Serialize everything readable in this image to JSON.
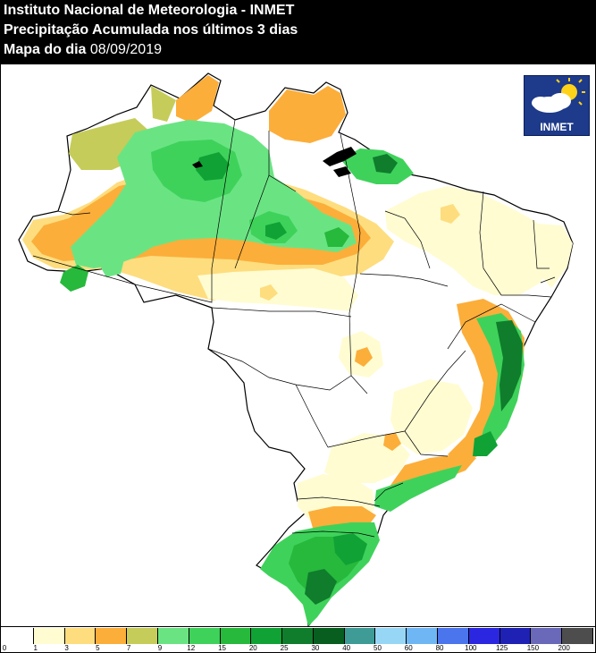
{
  "header": {
    "institution": "Instituto Nacional de Meteorologia - INMET",
    "product": "Precipitação Acumulada nos últimos 3 dias",
    "date_label": "Mapa do dia",
    "date_value": "08/09/2019"
  },
  "logo": {
    "text": "INMET",
    "icon": "sun-cloud-icon"
  },
  "legend": {
    "ticks": [
      "0",
      "1",
      "3",
      "5",
      "7",
      "9",
      "12",
      "15",
      "20",
      "25",
      "30",
      "40",
      "50",
      "60",
      "80",
      "100",
      "125",
      "150",
      "200"
    ],
    "colors": [
      "#ffffff",
      "#fffcd2",
      "#fedd7e",
      "#fcae3a",
      "#c6cc59",
      "#6ae483",
      "#3fd25b",
      "#26b93c",
      "#10a235",
      "#0f7d2c",
      "#075e1f",
      "#3f9b95",
      "#98d6f5",
      "#6fb6f4",
      "#4a75ec",
      "#2b27e0",
      "#1f21b5",
      "#6a68b9",
      "#4d4d4d"
    ]
  },
  "palette": {
    "white": "#ffffff",
    "light_cream": "#fffcd2",
    "light_orange": "#fedd7e",
    "orange": "#fcae3a",
    "olive": "#c6cc59",
    "light_green": "#6ae483",
    "green": "#3fd25b",
    "mid_green": "#26b93c",
    "dark_green": "#10a235",
    "darker_green": "#0f7d2c",
    "darkest_green": "#075e1f",
    "border": "#000000"
  }
}
